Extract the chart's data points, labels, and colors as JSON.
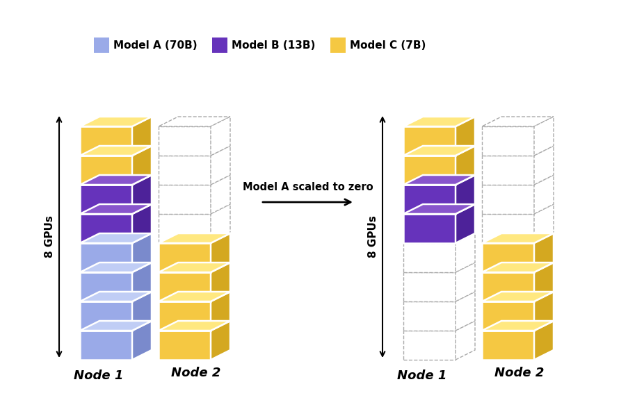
{
  "bg_color": "#ffffff",
  "arrow_text": "Model A scaled to zero",
  "left_label": "8 GPUs",
  "right_label": "8 GPUs",
  "node1_label": "Node 1",
  "node2_label": "Node 2",
  "color_model_a_front": "#9aaae8",
  "color_model_a_side": "#7a8acc",
  "color_model_a_top": "#c0cdf5",
  "color_model_b_front": "#6633bb",
  "color_model_b_side": "#4d2299",
  "color_model_b_top": "#8855cc",
  "color_model_c_front": "#f5c842",
  "color_model_c_side": "#d4a820",
  "color_model_c_top": "#ffe880",
  "color_empty_face": "#ffffff",
  "color_empty_border": "#aaaaaa",
  "legend_model_a": "#9aaae8",
  "legend_model_b": "#6633bb",
  "legend_model_c": "#f5c842",
  "legend_labels": [
    "Model A (70B)",
    "Model B (13B)",
    "Model C (7B)"
  ]
}
